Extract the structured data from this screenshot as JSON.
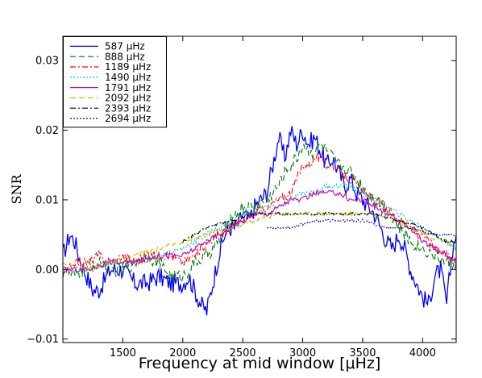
{
  "chart_data": {
    "type": "line",
    "title": "",
    "xlabel": "Frequency at mid window [μHz]",
    "ylabel": "SNR",
    "xlim": [
      1000,
      4280
    ],
    "ylim": [
      -0.0105,
      0.0335
    ],
    "xticks": [
      1500,
      2000,
      2500,
      3000,
      3500,
      4000
    ],
    "xtick_labels": [
      "1500",
      "2000",
      "2500",
      "3000",
      "3500",
      "4000"
    ],
    "yticks": [
      -0.01,
      0.0,
      0.01,
      0.02,
      0.03
    ],
    "ytick_labels": [
      "−0.01",
      "0.00",
      "0.01",
      "0.02",
      "0.03"
    ],
    "grid": false,
    "legend_position": "top-left",
    "series": [
      {
        "name": "587 μHz",
        "color": "#0000ff",
        "dash": "solid",
        "x": [
          1000,
          1060,
          1100,
          1150,
          1200,
          1250,
          1300,
          1400,
          1500,
          1600,
          1700,
          1800,
          1900,
          2000,
          2050,
          2100,
          2150,
          2200,
          2250,
          2300,
          2350,
          2400,
          2450,
          2500,
          2550,
          2600,
          2650,
          2700,
          2750,
          2800,
          2850,
          2900,
          2950,
          3000,
          3050,
          3100,
          3150,
          3200,
          3250,
          3300,
          3350,
          3400,
          3450,
          3500,
          3550,
          3600,
          3650,
          3700,
          3750,
          3800,
          3850,
          3900,
          3950,
          4000,
          4050,
          4100,
          4150,
          4200,
          4250,
          4280
        ],
        "values": [
          0.002,
          0.005,
          0.004,
          0.001,
          -0.001,
          -0.003,
          -0.003,
          0.0,
          0.0,
          -0.002,
          -0.002,
          -0.001,
          -0.002,
          -0.002,
          -0.001,
          -0.003,
          -0.005,
          -0.006,
          -0.002,
          0.002,
          0.005,
          0.006,
          0.006,
          0.008,
          0.007,
          0.009,
          0.01,
          0.011,
          0.015,
          0.019,
          0.016,
          0.02,
          0.018,
          0.02,
          0.018,
          0.019,
          0.017,
          0.015,
          0.016,
          0.014,
          0.012,
          0.013,
          0.011,
          0.01,
          0.009,
          0.008,
          0.006,
          0.004,
          0.003,
          0.005,
          0.003,
          0.0,
          -0.002,
          -0.004,
          -0.005,
          -0.001,
          0.0,
          -0.005,
          0.003,
          0.005
        ]
      },
      {
        "name": "888 μHz",
        "color": "#007700",
        "dash": "7,4",
        "x": [
          1000,
          1100,
          1200,
          1300,
          1400,
          1500,
          1600,
          1700,
          1800,
          1900,
          2000,
          2100,
          2200,
          2300,
          2400,
          2500,
          2600,
          2700,
          2800,
          2850,
          2900,
          2950,
          3000,
          3050,
          3100,
          3150,
          3200,
          3250,
          3300,
          3400,
          3500,
          3600,
          3700,
          3800,
          3900,
          4000,
          4100,
          4200,
          4280
        ],
        "values": [
          0.0,
          -0.001,
          0.0,
          0.001,
          0.0,
          0.0,
          0.001,
          0.002,
          0.001,
          -0.001,
          -0.001,
          0.001,
          0.002,
          0.004,
          0.007,
          0.009,
          0.009,
          0.01,
          0.012,
          0.014,
          0.015,
          0.016,
          0.018,
          0.017,
          0.017,
          0.018,
          0.017,
          0.016,
          0.015,
          0.014,
          0.012,
          0.01,
          0.009,
          0.006,
          0.004,
          0.003,
          0.002,
          0.001,
          0.001
        ]
      },
      {
        "name": "1189 μHz",
        "color": "#ff0000",
        "dash": "7,3,2,3",
        "x": [
          1000,
          1100,
          1200,
          1300,
          1400,
          1500,
          1600,
          1700,
          1800,
          1900,
          2000,
          2100,
          2200,
          2300,
          2400,
          2500,
          2600,
          2700,
          2800,
          2900,
          2950,
          3000,
          3050,
          3100,
          3150,
          3200,
          3250,
          3300,
          3400,
          3500,
          3600,
          3700,
          3800,
          3900,
          4000,
          4100,
          4200,
          4280
        ],
        "values": [
          -0.001,
          0.001,
          0.001,
          0.002,
          0.001,
          0.002,
          0.001,
          0.002,
          0.002,
          0.002,
          0.001,
          0.002,
          0.004,
          0.005,
          0.006,
          0.007,
          0.008,
          0.009,
          0.01,
          0.011,
          0.013,
          0.015,
          0.015,
          0.016,
          0.016,
          0.015,
          0.015,
          0.014,
          0.013,
          0.011,
          0.01,
          0.009,
          0.007,
          0.006,
          0.005,
          0.003,
          0.002,
          0.001
        ]
      },
      {
        "name": "1490 μHz",
        "color": "#00bfbf",
        "dash": "2,2",
        "x": [
          1000,
          1200,
          1400,
          1600,
          1800,
          2000,
          2200,
          2400,
          2500,
          2600,
          2700,
          2800,
          2900,
          3000,
          3100,
          3200,
          3300,
          3400,
          3500,
          3600,
          3700,
          3800,
          3900,
          4000,
          4100,
          4200,
          4280
        ],
        "values": [
          0.0,
          0.0,
          0.001,
          0.001,
          0.002,
          0.003,
          0.005,
          0.007,
          0.008,
          0.008,
          0.009,
          0.009,
          0.01,
          0.011,
          0.011,
          0.012,
          0.012,
          0.012,
          0.011,
          0.01,
          0.009,
          0.008,
          0.007,
          0.006,
          0.005,
          0.004,
          0.003
        ]
      },
      {
        "name": "1791 μHz",
        "color": "#bf00bf",
        "dash": "solid",
        "x": [
          1000,
          1200,
          1400,
          1600,
          1800,
          2000,
          2200,
          2300,
          2400,
          2500,
          2600,
          2700,
          2800,
          2900,
          3000,
          3100,
          3200,
          3300,
          3400,
          3500,
          3600,
          3700,
          3800,
          3900,
          4000,
          4100,
          4200,
          4280
        ],
        "values": [
          0.0,
          0.0,
          0.001,
          0.001,
          0.002,
          0.002,
          0.004,
          0.005,
          0.006,
          0.007,
          0.008,
          0.008,
          0.009,
          0.01,
          0.01,
          0.011,
          0.011,
          0.011,
          0.01,
          0.01,
          0.009,
          0.008,
          0.007,
          0.006,
          0.004,
          0.003,
          0.002,
          0.001
        ]
      },
      {
        "name": "2092 μHz",
        "color": "#bfbf00",
        "dash": "7,4",
        "x": [
          1000,
          1200,
          1400,
          1600,
          1800,
          2000,
          2200,
          2400,
          2600,
          2800,
          3000,
          3200,
          3400,
          3600,
          3800,
          4000,
          4200,
          4280
        ],
        "values": [
          0.001,
          0.0,
          0.001,
          0.002,
          0.003,
          0.004,
          0.005,
          0.006,
          0.007,
          0.008,
          0.008,
          0.008,
          0.008,
          0.008,
          0.007,
          0.005,
          0.004,
          0.003
        ]
      },
      {
        "name": "2393 μHz",
        "color": "#000000",
        "dash": "7,3,2,3",
        "x": [
          2000,
          2200,
          2400,
          2600,
          2800,
          3000,
          3200,
          3400,
          3600,
          3800,
          4000,
          4200,
          4280
        ],
        "values": [
          0.004,
          0.006,
          0.007,
          0.008,
          0.008,
          0.008,
          0.008,
          0.008,
          0.008,
          0.007,
          0.006,
          0.004,
          0.004
        ]
      },
      {
        "name": "2694 μHz",
        "color": "#0000bb",
        "dash": "2,2",
        "x": [
          2700,
          2900,
          3100,
          3300,
          3500,
          3700,
          3900,
          4100,
          4280
        ],
        "values": [
          0.006,
          0.006,
          0.007,
          0.007,
          0.007,
          0.006,
          0.006,
          0.005,
          0.005
        ]
      }
    ]
  }
}
